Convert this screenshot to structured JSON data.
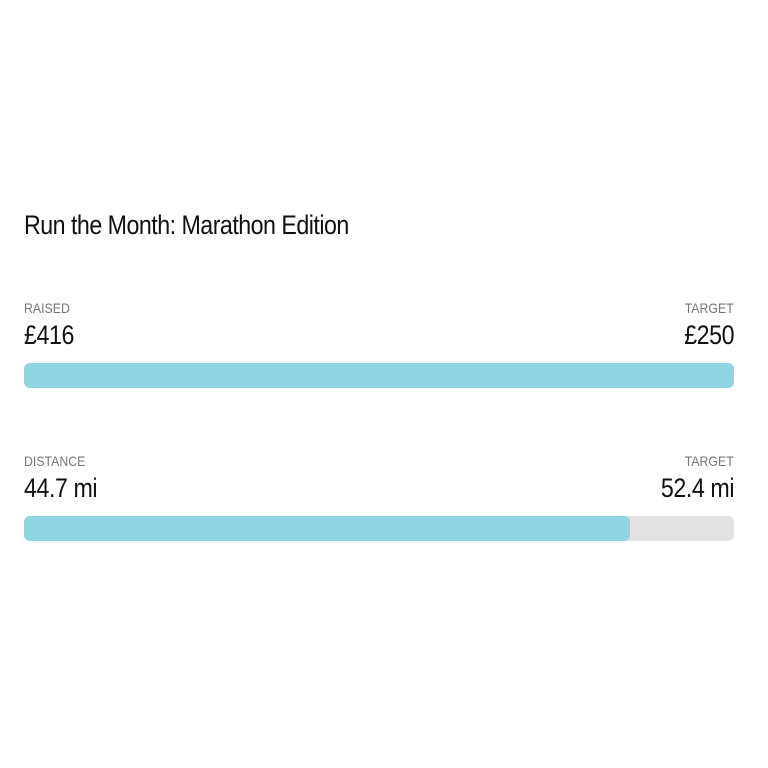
{
  "title": "Run the Month: Marathon Edition",
  "progress": [
    {
      "label": "RAISED",
      "value": {
        "value": 416,
        "label": "£416"
      },
      "target_label": "TARGET",
      "target": {
        "value": 250,
        "label": "£250"
      }
    },
    {
      "label": "DISTANCE",
      "value": {
        "value": 44.7,
        "label": "44.7 mi"
      },
      "target_label": "TARGET",
      "target": {
        "value": 52.4,
        "label": "52.4 mi"
      }
    }
  ]
}
